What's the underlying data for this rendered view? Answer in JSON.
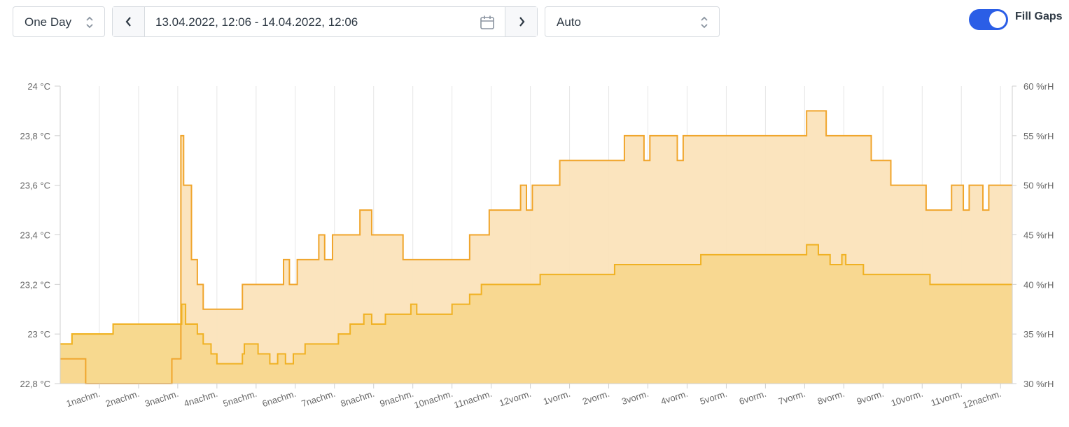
{
  "toolbar": {
    "period_select": "One Day",
    "date_range": "13.04.2022, 12:06 - 14.04.2022, 12:06",
    "aggregation_select": "Auto",
    "fill_gaps_label": "Fill Gaps",
    "fill_gaps_on": true
  },
  "colors": {
    "accent": "#2b5ee6",
    "temp_fill": "#f7d68a",
    "temp_line": "#f0b123",
    "hum_fill": "#fbe3bb",
    "hum_line": "#f0a52c",
    "early_fill": "#f7e6a6",
    "early_line": "#f5c824"
  },
  "chart_data": {
    "type": "area",
    "x_unit": "hours since 13.04.2022 12:06",
    "x_range": [
      0,
      24.3
    ],
    "x_ticks": [
      "1nachm.",
      "2nachm.",
      "3nachm.",
      "4nachm.",
      "5nachm.",
      "6nachm.",
      "7nachm.",
      "8nachm.",
      "9nachm.",
      "10nachm.",
      "11nachm.",
      "12vorm.",
      "1vorm.",
      "2vorm.",
      "3vorm.",
      "4vorm.",
      "5vorm.",
      "6vorm.",
      "7vorm.",
      "8vorm.",
      "9vorm.",
      "10vorm.",
      "11vorm.",
      "12nachm."
    ],
    "y_left": {
      "ylim": [
        22.8,
        24.0
      ],
      "ticks": [
        "22,8 °C",
        "23 °C",
        "23,2 °C",
        "23,4 °C",
        "23,6 °C",
        "23,8 °C",
        "24 °C"
      ]
    },
    "y_right": {
      "ylim": [
        30,
        60
      ],
      "ticks": [
        "30 %rH",
        "35 %rH",
        "40 %rH",
        "45 %rH",
        "50 %rH",
        "55 %rH",
        "60 %rH"
      ]
    },
    "grid": "vertical",
    "series": [
      {
        "axis": "left",
        "step": true,
        "points": [
          [
            0,
            22.9
          ],
          [
            0.65,
            22.8
          ],
          [
            2.85,
            22.9
          ],
          [
            3.08,
            23.8
          ],
          [
            3.12,
            23.8
          ],
          [
            3.15,
            23.6
          ],
          [
            3.35,
            23.3
          ],
          [
            3.5,
            23.2
          ],
          [
            3.65,
            23.1
          ],
          [
            4.65,
            23.2
          ],
          [
            5.7,
            23.3
          ],
          [
            5.85,
            23.2
          ],
          [
            6.05,
            23.3
          ],
          [
            6.6,
            23.4
          ],
          [
            6.75,
            23.3
          ],
          [
            6.95,
            23.4
          ],
          [
            7.65,
            23.5
          ],
          [
            7.95,
            23.4
          ],
          [
            8.75,
            23.3
          ],
          [
            10.45,
            23.4
          ],
          [
            10.95,
            23.5
          ],
          [
            11.75,
            23.6
          ],
          [
            11.9,
            23.5
          ],
          [
            12.05,
            23.6
          ],
          [
            12.75,
            23.7
          ],
          [
            14.4,
            23.8
          ],
          [
            14.9,
            23.7
          ],
          [
            15.05,
            23.8
          ],
          [
            15.75,
            23.7
          ],
          [
            15.9,
            23.8
          ],
          [
            19.05,
            23.9
          ],
          [
            19.55,
            23.8
          ],
          [
            20.7,
            23.7
          ],
          [
            21.2,
            23.6
          ],
          [
            22.1,
            23.5
          ],
          [
            22.75,
            23.6
          ],
          [
            23.05,
            23.5
          ],
          [
            23.2,
            23.6
          ],
          [
            23.55,
            23.5
          ],
          [
            23.7,
            23.6
          ],
          [
            24.3,
            23.6
          ]
        ]
      },
      {
        "axis": "right",
        "step": true,
        "points": [
          [
            0,
            34
          ],
          [
            0.3,
            35
          ],
          [
            1.35,
            36
          ],
          [
            3.0,
            36
          ],
          [
            3.1,
            38
          ],
          [
            3.2,
            36
          ],
          [
            3.5,
            35
          ],
          [
            3.65,
            34
          ],
          [
            3.85,
            33
          ],
          [
            4.0,
            32
          ],
          [
            4.65,
            33
          ],
          [
            4.7,
            34
          ],
          [
            5.05,
            33
          ],
          [
            5.35,
            32
          ],
          [
            5.55,
            33
          ],
          [
            5.75,
            32
          ],
          [
            5.95,
            33
          ],
          [
            6.25,
            34
          ],
          [
            7.1,
            35
          ],
          [
            7.4,
            36
          ],
          [
            7.75,
            37
          ],
          [
            7.95,
            36
          ],
          [
            8.3,
            37
          ],
          [
            8.95,
            38
          ],
          [
            9.1,
            37
          ],
          [
            10.0,
            38
          ],
          [
            10.45,
            39
          ],
          [
            10.75,
            40
          ],
          [
            12.25,
            41
          ],
          [
            14.15,
            42
          ],
          [
            16.35,
            43
          ],
          [
            19.05,
            44
          ],
          [
            19.35,
            43
          ],
          [
            19.65,
            42
          ],
          [
            19.95,
            43
          ],
          [
            20.05,
            42
          ],
          [
            20.5,
            41
          ],
          [
            22.2,
            40
          ],
          [
            24.3,
            40
          ]
        ]
      }
    ]
  }
}
